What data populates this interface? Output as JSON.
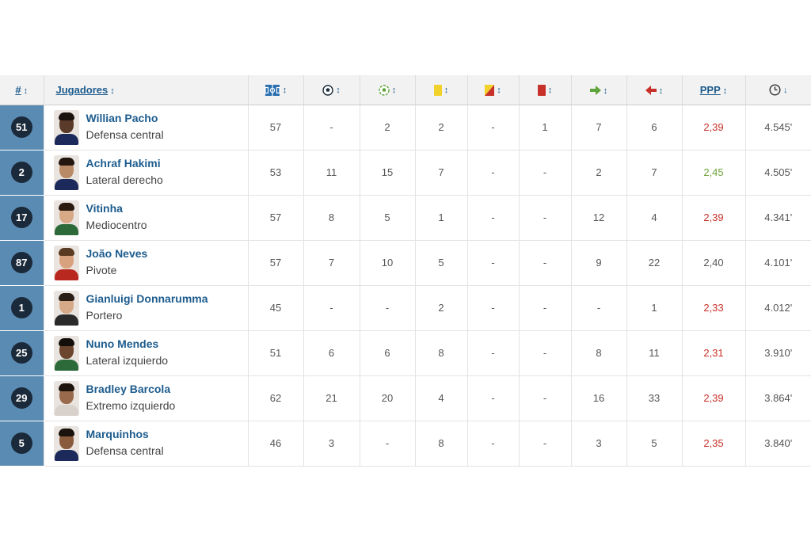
{
  "header": {
    "num": "#",
    "players": "Jugadores",
    "ppp": "PPP",
    "sort_glyph": "↕",
    "sort_active_glyph": "↓"
  },
  "columns": [
    {
      "key": "matches",
      "icon": "field-icon"
    },
    {
      "key": "goals",
      "icon": "ball-icon"
    },
    {
      "key": "assists",
      "icon": "assist-ball-icon"
    },
    {
      "key": "yellow",
      "icon": "yellow-card-icon"
    },
    {
      "key": "second_yellow",
      "icon": "second-yellow-card-icon"
    },
    {
      "key": "red",
      "icon": "red-card-icon"
    },
    {
      "key": "subs_in",
      "icon": "sub-in-arrow-icon"
    },
    {
      "key": "subs_out",
      "icon": "sub-out-arrow-icon"
    },
    {
      "key": "ppp",
      "icon": ""
    },
    {
      "key": "minutes",
      "icon": "clock-icon"
    }
  ],
  "colors": {
    "link": "#1d5c8e",
    "field_icon": "#2a6fb0",
    "ball_icon": "#1b2a3a",
    "assist_icon": "#5ea43a",
    "yellow_card": "#f3d12b",
    "red_card": "#c8312a",
    "sub_in": "#5ea43a",
    "sub_out": "#c8312a",
    "ppp_red": "#c8312a",
    "ppp_green": "#6fa23a"
  },
  "players": [
    {
      "number": "51",
      "name": "Willian Pacho",
      "position": "Defensa central",
      "stats": [
        "57",
        "-",
        "2",
        "2",
        "-",
        "1",
        "7",
        "6"
      ],
      "ppp": "2,39",
      "ppp_color": "red",
      "minutes": "4.545'",
      "avatar": {
        "skin": "#5a3a28",
        "hair": "#1a120c",
        "shirt": "#1b2a5a"
      }
    },
    {
      "number": "2",
      "name": "Achraf Hakimi",
      "position": "Lateral derecho",
      "stats": [
        "53",
        "11",
        "15",
        "7",
        "-",
        "-",
        "2",
        "7"
      ],
      "ppp": "2,45",
      "ppp_color": "green",
      "minutes": "4.505'",
      "avatar": {
        "skin": "#b98a66",
        "hair": "#22160e",
        "shirt": "#1b2a5a"
      }
    },
    {
      "number": "17",
      "name": "Vitinha",
      "position": "Mediocentro",
      "stats": [
        "57",
        "8",
        "5",
        "1",
        "-",
        "-",
        "12",
        "4"
      ],
      "ppp": "2,39",
      "ppp_color": "red",
      "minutes": "4.341'",
      "avatar": {
        "skin": "#d8a987",
        "hair": "#2a1a10",
        "shirt": "#2c6a3a"
      }
    },
    {
      "number": "87",
      "name": "João Neves",
      "position": "Pivote",
      "stats": [
        "57",
        "7",
        "10",
        "5",
        "-",
        "-",
        "9",
        "22"
      ],
      "ppp": "2,40",
      "ppp_color": "gray",
      "minutes": "4.101'",
      "avatar": {
        "skin": "#d9a27e",
        "hair": "#5a3a20",
        "shirt": "#b8281f"
      }
    },
    {
      "number": "1",
      "name": "Gianluigi Donnarumma",
      "position": "Portero",
      "stats": [
        "45",
        "-",
        "-",
        "2",
        "-",
        "-",
        "-",
        "1"
      ],
      "ppp": "2,33",
      "ppp_color": "red",
      "minutes": "4.012'",
      "avatar": {
        "skin": "#d6a988",
        "hair": "#2a1e16",
        "shirt": "#2a2a2a"
      }
    },
    {
      "number": "25",
      "name": "Nuno Mendes",
      "position": "Lateral izquierdo",
      "stats": [
        "51",
        "6",
        "6",
        "8",
        "-",
        "-",
        "8",
        "11"
      ],
      "ppp": "2,31",
      "ppp_color": "red",
      "minutes": "3.910'",
      "avatar": {
        "skin": "#6b452e",
        "hair": "#140e0a",
        "shirt": "#2c6a3a"
      }
    },
    {
      "number": "29",
      "name": "Bradley Barcola",
      "position": "Extremo izquierdo",
      "stats": [
        "62",
        "21",
        "20",
        "4",
        "-",
        "-",
        "16",
        "33"
      ],
      "ppp": "2,39",
      "ppp_color": "red",
      "minutes": "3.864'",
      "avatar": {
        "skin": "#9a6a4c",
        "hair": "#1e140e",
        "shirt": "#d9d2cc"
      }
    },
    {
      "number": "5",
      "name": "Marquinhos",
      "position": "Defensa central",
      "stats": [
        "46",
        "3",
        "-",
        "8",
        "-",
        "-",
        "3",
        "5"
      ],
      "ppp": "2,35",
      "ppp_color": "red",
      "minutes": "3.840'",
      "avatar": {
        "skin": "#8a5a3c",
        "hair": "#1a120c",
        "shirt": "#1b2a5a"
      }
    }
  ]
}
